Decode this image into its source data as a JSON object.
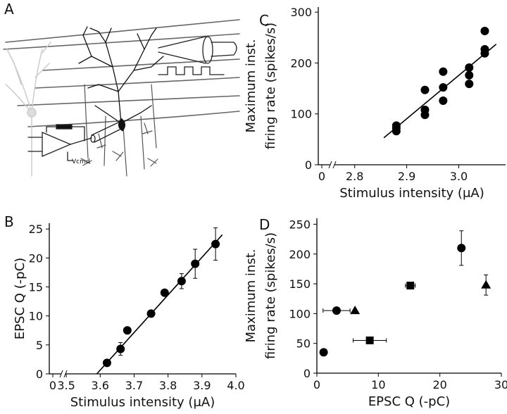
{
  "diagram": {
    "panel": "A",
    "amplifier_label": "Vcmd"
  },
  "chart_data": [
    {
      "type": "scatter",
      "panel": "B",
      "xlabel": "Stimulus intensity (μA)",
      "ylabel": [
        "EPSC Q (-pC)"
      ],
      "xlim": [
        3.45,
        4.0
      ],
      "xticks": [
        0,
        3.5,
        3.6,
        3.7,
        3.8,
        3.9,
        {
          "value": 4.0,
          "label": "4.0"
        }
      ],
      "x_break": true,
      "ylim": [
        0,
        26
      ],
      "yticks": [
        0,
        5,
        10,
        15,
        20,
        25
      ],
      "series": [
        {
          "marker": "circle",
          "color": "#000000",
          "x": [
            3.62,
            3.66,
            3.68,
            3.75,
            3.79,
            3.84,
            3.88,
            3.94
          ],
          "values": [
            1.9,
            4.3,
            7.5,
            10.4,
            14,
            16,
            19,
            22.4
          ],
          "errors": [
            null,
            1.1,
            null,
            null,
            null,
            1.3,
            2.5,
            2.8
          ]
        },
        {
          "marker": "line",
          "color": "#000000",
          "x": [
            3.59,
            3.96
          ],
          "values": [
            0,
            24
          ]
        }
      ]
    },
    {
      "type": "scatter",
      "panel": "C",
      "xlabel": "Stimulus intensity (μA)",
      "ylabel": [
        "Maximum inst.",
        "firing rate (spikes/s)"
      ],
      "xlim": [
        2.73,
        3.09
      ],
      "xticks": [
        0,
        2.8,
        2.9,
        {
          "value": 3.0,
          "label": "3.0"
        }
      ],
      "x_break": true,
      "ylim": [
        0,
        310
      ],
      "yticks": [
        0,
        100,
        200,
        300
      ],
      "series": [
        {
          "marker": "circle",
          "color": "#000000",
          "x": [
            2.88,
            2.88,
            2.88,
            2.935,
            2.935,
            2.935,
            2.97,
            2.97,
            2.97,
            3.02,
            3.02,
            3.02,
            3.05,
            3.05,
            3.05
          ],
          "values": [
            77,
            72,
            66,
            147,
            108,
            98,
            183,
            152,
            126,
            191,
            176,
            159,
            263,
            227,
            219
          ]
        },
        {
          "marker": "line",
          "color": "#000000",
          "x": [
            2.856,
            3.072
          ],
          "values": [
            53,
            237
          ]
        }
      ]
    },
    {
      "type": "scatter",
      "panel": "D",
      "xlabel": "EPSC Q (-pC)",
      "ylabel": [
        "Maximum inst.",
        "firing rate (spikes/s)"
      ],
      "xlim": [
        0,
        30
      ],
      "xticks": [
        0,
        10,
        20,
        30
      ],
      "ylim": [
        0,
        260
      ],
      "yticks": [
        0,
        50,
        100,
        150,
        200,
        250
      ],
      "series": [
        {
          "marker": "circle",
          "color": "#000000",
          "x": [
            1.1,
            3.2,
            23.5
          ],
          "values": [
            35,
            105,
            210
          ],
          "errors": [
            null,
            null,
            29
          ],
          "xerrors": [
            null,
            2.2,
            null
          ]
        },
        {
          "marker": "square",
          "color": "#000000",
          "x": [
            8.6,
            15.2
          ],
          "values": [
            55,
            147
          ],
          "xerrors": [
            2.7,
            0.8
          ]
        },
        {
          "marker": "triangle",
          "color": "#000000",
          "x": [
            6.2,
            27.5
          ],
          "values": [
            105,
            148
          ],
          "errors": [
            null,
            17
          ]
        }
      ]
    }
  ]
}
